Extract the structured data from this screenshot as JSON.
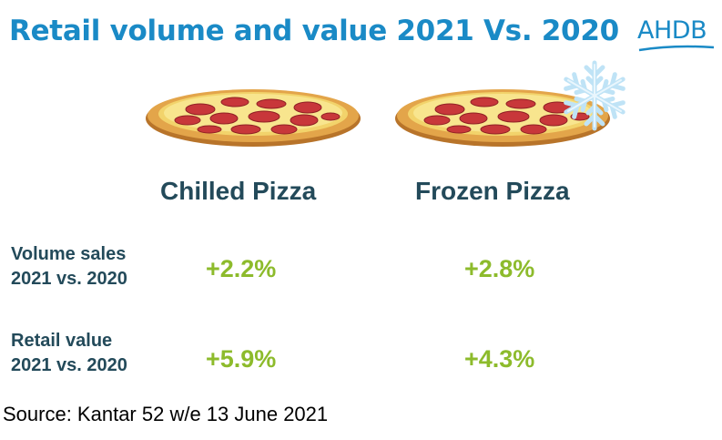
{
  "title": "Retail volume and value 2021 Vs. 2020",
  "logo": {
    "text": "AHDB",
    "icon": "ahdb-logo"
  },
  "columns": [
    {
      "label": "Chilled Pizza",
      "icon": "pizza-icon"
    },
    {
      "label": "Frozen Pizza",
      "icon": "pizza-icon",
      "badge_icon": "snowflake-icon"
    }
  ],
  "rows": [
    {
      "label_line1": "Volume sales",
      "label_line2": "2021 vs. 2020",
      "values": [
        "+2.2%",
        "+2.8%"
      ]
    },
    {
      "label_line1": "Retail value",
      "label_line2": "2021 vs. 2020",
      "values": [
        "+5.9%",
        "+4.3%"
      ]
    }
  ],
  "source": "Source: Kantar 52 w/e 13 June 2021",
  "colors": {
    "title": "#1a8ac6",
    "heading": "#234a5a",
    "value": "#8dbb2c"
  }
}
